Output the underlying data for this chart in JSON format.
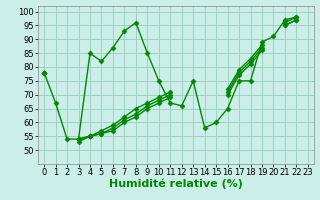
{
  "xlabel": "Humidité relative (%)",
  "background_color": "#cceee8",
  "grid_color": "#99ccbb",
  "line_color": "#008800",
  "xlim": [
    -0.5,
    23.5
  ],
  "ylim": [
    45,
    102
  ],
  "yticks": [
    50,
    55,
    60,
    65,
    70,
    75,
    80,
    85,
    90,
    95,
    100
  ],
  "xticks": [
    0,
    1,
    2,
    3,
    4,
    5,
    6,
    7,
    8,
    9,
    10,
    11,
    12,
    13,
    14,
    15,
    16,
    17,
    18,
    19,
    20,
    21,
    22,
    23
  ],
  "series": [
    [
      78,
      67,
      54,
      54,
      85,
      82,
      87,
      93,
      96,
      85,
      75,
      67,
      66,
      75,
      58,
      60,
      65,
      75,
      75,
      89,
      91,
      97,
      98,
      null
    ],
    [
      78,
      null,
      null,
      54,
      55,
      57,
      59,
      62,
      65,
      67,
      69,
      71,
      null,
      null,
      null,
      null,
      72,
      79,
      83,
      88,
      null,
      96,
      98,
      null
    ],
    [
      78,
      null,
      null,
      54,
      55,
      56,
      58,
      61,
      63,
      66,
      68,
      70,
      null,
      null,
      null,
      null,
      71,
      78,
      82,
      87,
      null,
      95,
      97,
      null
    ],
    [
      78,
      null,
      null,
      53,
      55,
      56,
      57,
      60,
      62,
      65,
      67,
      69,
      null,
      null,
      null,
      null,
      70,
      77,
      81,
      86,
      null,
      95,
      97,
      null
    ]
  ],
  "marker": "D",
  "markersize": 2.5,
  "linewidth": 1.0,
  "xlabel_fontsize": 8,
  "tick_fontsize": 6
}
